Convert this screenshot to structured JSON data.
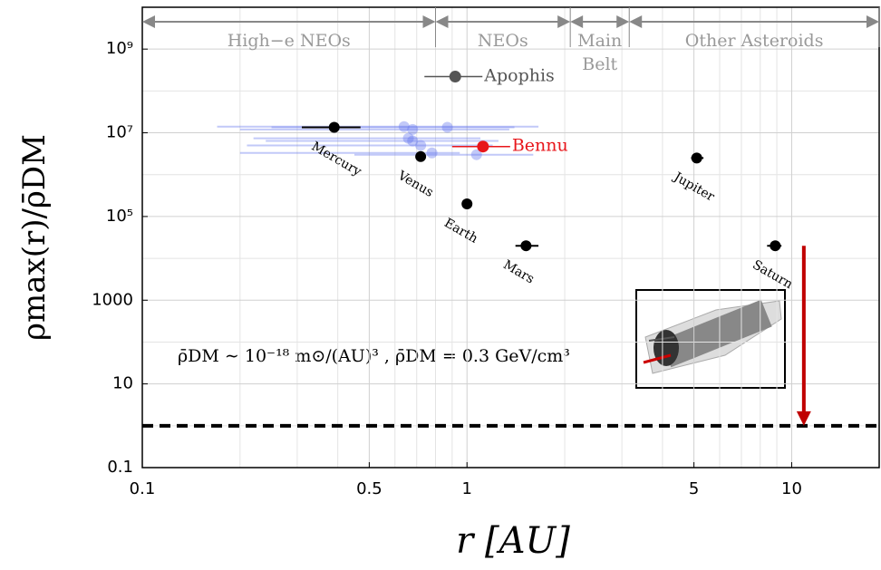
{
  "chart_data": {
    "type": "scatter",
    "xlabel": "r [AU]",
    "ylabel": "ρmax(r)/ρ̄DM",
    "xlog": true,
    "ylog": true,
    "grid": true,
    "xlim": [
      0.1,
      18.6
    ],
    "ylim": [
      0.1,
      10000000000
    ],
    "xticks": [
      0.1,
      0.5,
      1,
      5,
      10
    ],
    "minor_xticks": [
      0.2,
      0.3,
      0.4,
      0.6,
      0.7,
      0.8,
      0.9,
      2,
      3,
      4,
      6,
      7,
      8,
      9
    ],
    "yticks": [
      0.1,
      10,
      1000,
      {
        "value": 100000,
        "label": "10⁵"
      },
      {
        "value": 10000000,
        "label": "10⁷"
      },
      {
        "value": 1000000000,
        "label": "10⁹"
      }
    ],
    "minor_yticks": [
      1,
      100,
      10000,
      1000000,
      100000000,
      10000000000
    ],
    "planets": {
      "color": "#000000",
      "labels": [
        "Mercury",
        "Venus",
        "Earth",
        "Mars",
        "Jupiter",
        "Saturn"
      ],
      "x": [
        0.39,
        0.72,
        1.0,
        1.52,
        5.1,
        8.9
      ],
      "values": [
        13500000,
        2700000,
        200000,
        20000,
        2500000,
        20000
      ],
      "x_low": [
        0.31,
        null,
        null,
        1.41,
        4.9,
        8.4
      ],
      "x_high": [
        0.47,
        null,
        null,
        1.66,
        5.35,
        9.3
      ]
    },
    "neos": {
      "color": "#6677ee",
      "x": [
        0.64,
        0.68,
        0.66,
        0.68,
        0.72,
        0.78,
        0.87,
        1.07
      ],
      "values": [
        14000000,
        12000000,
        7400000,
        6400000,
        5000000,
        3300000,
        13500000,
        3000000
      ],
      "x_low": [
        0.17,
        0.2,
        0.22,
        0.24,
        0.21,
        0.2,
        0.25,
        0.45
      ],
      "x_high": [
        1.66,
        1.35,
        1.1,
        1.25,
        1.2,
        0.95,
        1.4,
        1.6
      ]
    },
    "bennu": {
      "label": "Bennu",
      "color": "#e8161b",
      "x": 1.12,
      "value": 4700000
    },
    "apophis": {
      "label": "Apophis",
      "color": "#555555",
      "x": 0.92,
      "value": 220000000
    },
    "regions": [
      {
        "label": [
          "High−e NEOs"
        ],
        "from": 0.1,
        "to": 0.8
      },
      {
        "label": [
          "NEOs"
        ],
        "from": 0.8,
        "to": 2.08
      },
      {
        "label": [
          "Main",
          "Belt"
        ],
        "from": 2.08,
        "to": 3.16
      },
      {
        "label": [
          "Other Asteroids"
        ],
        "from": 3.16,
        "to": 18.6
      }
    ],
    "threshold": 1,
    "arrow": {
      "x": 10.9,
      "from": 20000,
      "to": 1,
      "color": "#c00000"
    },
    "annotation": "ρ̄DM ∼ 10⁻¹⁸ m⊙/(AU)³ , ρ̄DM = 0.3 GeV/cm³"
  }
}
